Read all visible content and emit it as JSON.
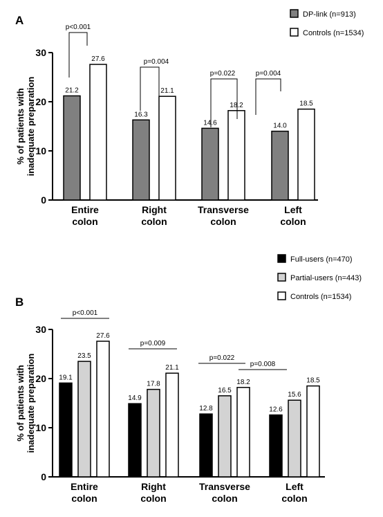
{
  "chart_data": [
    {
      "panel": "A",
      "type": "bar",
      "ylabel": [
        "% of patients with",
        "inadequate preparation"
      ],
      "ylim": [
        0,
        30
      ],
      "yticks": [
        0,
        10,
        20,
        30
      ],
      "categories": [
        [
          "Entire",
          "colon"
        ],
        [
          "Right",
          "colon"
        ],
        [
          "Transverse",
          "colon"
        ],
        [
          "Left",
          "colon"
        ]
      ],
      "series": [
        {
          "name": "DP-link (n=913)",
          "color": "#808080",
          "values": [
            21.2,
            16.3,
            14.6,
            14.0
          ],
          "labels": [
            "21.2",
            "16.3",
            "14.6",
            "14.0"
          ]
        },
        {
          "name": "Controls (n=1534)",
          "color": "#ffffff",
          "values": [
            27.6,
            21.1,
            18.2,
            18.5
          ],
          "labels": [
            "27.6",
            "21.1",
            "18.2",
            "18.5"
          ]
        }
      ],
      "annotations": [
        {
          "text": "p<0.001",
          "category": 0
        },
        {
          "text": "p=0.004",
          "category": 1
        },
        {
          "text": "p=0.022",
          "category": 2
        },
        {
          "text": "p=0.004",
          "category": 3
        }
      ],
      "legend": "top-right"
    },
    {
      "panel": "B",
      "type": "bar",
      "ylabel": [
        "% of patients with",
        "inadequate preparation"
      ],
      "ylim": [
        0,
        30
      ],
      "yticks": [
        0,
        10,
        20,
        30
      ],
      "categories": [
        [
          "Entire",
          "colon"
        ],
        [
          "Right",
          "colon"
        ],
        [
          "Transverse",
          "colon"
        ],
        [
          "Left",
          "colon"
        ]
      ],
      "series": [
        {
          "name": "Full-users (n=470)",
          "color": "#000000",
          "values": [
            19.1,
            14.9,
            12.8,
            12.6
          ],
          "labels": [
            "19.1",
            "14.9",
            "12.8",
            "12.6"
          ]
        },
        {
          "name": "Partial-users (n=443)",
          "color": "#d3d3d3",
          "values": [
            23.5,
            17.8,
            16.5,
            15.6
          ],
          "labels": [
            "23.5",
            "17.8",
            "16.5",
            "15.6"
          ]
        },
        {
          "name": "Controls (n=1534)",
          "color": "#ffffff",
          "values": [
            27.6,
            21.1,
            18.2,
            18.5
          ],
          "labels": [
            "27.6",
            "21.1",
            "18.2",
            "18.5"
          ]
        }
      ],
      "annotations": [
        {
          "text": "p<0.001",
          "category": 0
        },
        {
          "text": "p=0.009",
          "category": 1
        },
        {
          "text": "p=0.022",
          "category": 2
        },
        {
          "text": "p=0.008",
          "category": 3
        }
      ],
      "legend": "top-right"
    }
  ]
}
